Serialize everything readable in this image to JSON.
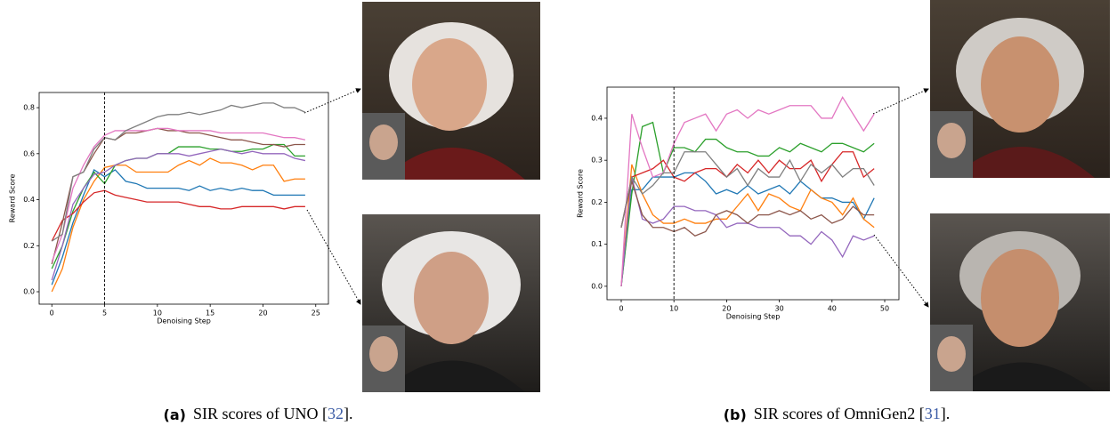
{
  "chart_data": [
    {
      "type": "line",
      "x_label": "Denoising Step",
      "y_label": "Reward Score",
      "x": [
        0,
        1,
        2,
        3,
        4,
        5,
        6,
        7,
        8,
        9,
        10,
        11,
        12,
        13,
        14,
        15,
        16,
        17,
        18,
        19,
        20,
        21,
        22,
        23,
        24
      ],
      "xlim": [
        -1.2,
        26.2
      ],
      "ylim": [
        -0.054,
        0.866
      ],
      "xticks": [
        0,
        5,
        10,
        15,
        20,
        25
      ],
      "yticks": [
        {
          "value": 0,
          "label": "0.0"
        },
        0.2,
        0.4,
        0.6,
        0.8
      ],
      "vline": 5,
      "series": [
        {
          "color": "#1f77b4",
          "values": [
            0.03,
            0.15,
            0.3,
            0.42,
            0.53,
            0.5,
            0.53,
            0.48,
            0.47,
            0.45,
            0.45,
            0.45,
            0.45,
            0.44,
            0.46,
            0.44,
            0.45,
            0.44,
            0.45,
            0.44,
            0.44,
            0.42,
            0.42,
            0.42,
            0.42
          ]
        },
        {
          "color": "#ff7f0e",
          "values": [
            0.0,
            0.1,
            0.28,
            0.4,
            0.48,
            0.54,
            0.55,
            0.55,
            0.52,
            0.52,
            0.52,
            0.52,
            0.55,
            0.57,
            0.55,
            0.58,
            0.56,
            0.56,
            0.55,
            0.53,
            0.55,
            0.55,
            0.48,
            0.49,
            0.49
          ]
        },
        {
          "color": "#2ca02c",
          "values": [
            0.1,
            0.2,
            0.35,
            0.45,
            0.52,
            0.47,
            0.55,
            0.57,
            0.58,
            0.58,
            0.6,
            0.6,
            0.63,
            0.63,
            0.63,
            0.62,
            0.62,
            0.61,
            0.61,
            0.62,
            0.62,
            0.64,
            0.64,
            0.59,
            0.59
          ]
        },
        {
          "color": "#d62728",
          "values": [
            0.22,
            0.31,
            0.34,
            0.39,
            0.43,
            0.44,
            0.42,
            0.41,
            0.4,
            0.39,
            0.39,
            0.39,
            0.39,
            0.38,
            0.37,
            0.37,
            0.36,
            0.36,
            0.37,
            0.37,
            0.37,
            0.37,
            0.36,
            0.37,
            0.37
          ]
        },
        {
          "color": "#9467bd",
          "values": [
            0.05,
            0.2,
            0.38,
            0.45,
            0.51,
            0.52,
            0.55,
            0.57,
            0.58,
            0.58,
            0.6,
            0.6,
            0.6,
            0.59,
            0.6,
            0.61,
            0.62,
            0.61,
            0.6,
            0.61,
            0.6,
            0.6,
            0.6,
            0.58,
            0.57
          ]
        },
        {
          "color": "#8c564b",
          "values": [
            0.12,
            0.3,
            0.5,
            0.52,
            0.6,
            0.67,
            0.66,
            0.69,
            0.69,
            0.7,
            0.71,
            0.7,
            0.7,
            0.69,
            0.69,
            0.68,
            0.67,
            0.66,
            0.66,
            0.65,
            0.64,
            0.64,
            0.63,
            0.64,
            0.64
          ]
        },
        {
          "color": "#e377c2",
          "values": [
            0.13,
            0.25,
            0.45,
            0.55,
            0.63,
            0.68,
            0.7,
            0.7,
            0.7,
            0.7,
            0.71,
            0.71,
            0.7,
            0.7,
            0.7,
            0.7,
            0.69,
            0.69,
            0.69,
            0.69,
            0.69,
            0.68,
            0.67,
            0.67,
            0.66
          ]
        },
        {
          "color": "#7f7f7f",
          "values": [
            0.22,
            0.25,
            0.5,
            0.52,
            0.62,
            0.67,
            0.66,
            0.7,
            0.72,
            0.74,
            0.76,
            0.77,
            0.77,
            0.78,
            0.77,
            0.78,
            0.79,
            0.81,
            0.8,
            0.81,
            0.82,
            0.82,
            0.8,
            0.8,
            0.78
          ]
        }
      ],
      "caption_label": "(a)",
      "caption_text": "SIR scores of UNO [",
      "caption_ref": "32",
      "caption_end": "]."
    },
    {
      "type": "line",
      "x_label": "Denoising Step",
      "y_label": "Reward Score",
      "x": [
        0,
        2,
        4,
        6,
        8,
        10,
        12,
        14,
        16,
        18,
        20,
        22,
        24,
        26,
        28,
        30,
        32,
        34,
        36,
        38,
        40,
        42,
        44,
        46,
        48
      ],
      "xlim": [
        -2.7,
        52.7
      ],
      "ylim": [
        -0.032,
        0.474
      ],
      "xticks": [
        0,
        10,
        20,
        30,
        40,
        50
      ],
      "yticks": [
        {
          "value": 0,
          "label": "0.0"
        },
        0.1,
        0.2,
        0.3,
        0.4
      ],
      "vline": 10,
      "series": [
        {
          "color": "#1f77b4",
          "values": [
            0.0,
            0.23,
            0.23,
            0.26,
            0.26,
            0.26,
            0.27,
            0.27,
            0.25,
            0.22,
            0.23,
            0.22,
            0.24,
            0.22,
            0.23,
            0.24,
            0.22,
            0.25,
            0.23,
            0.21,
            0.21,
            0.2,
            0.2,
            0.16,
            0.21
          ]
        },
        {
          "color": "#ff7f0e",
          "values": [
            0.0,
            0.29,
            0.22,
            0.17,
            0.15,
            0.15,
            0.16,
            0.15,
            0.15,
            0.16,
            0.16,
            0.19,
            0.22,
            0.18,
            0.22,
            0.21,
            0.19,
            0.18,
            0.23,
            0.21,
            0.2,
            0.17,
            0.21,
            0.16,
            0.14
          ]
        },
        {
          "color": "#2ca02c",
          "values": [
            0.0,
            0.22,
            0.38,
            0.39,
            0.27,
            0.33,
            0.33,
            0.32,
            0.35,
            0.35,
            0.33,
            0.32,
            0.32,
            0.31,
            0.31,
            0.33,
            0.32,
            0.34,
            0.33,
            0.32,
            0.34,
            0.34,
            0.33,
            0.32,
            0.34
          ]
        },
        {
          "color": "#d62728",
          "values": [
            0.14,
            0.26,
            0.27,
            0.28,
            0.3,
            0.26,
            0.25,
            0.27,
            0.28,
            0.28,
            0.26,
            0.29,
            0.27,
            0.3,
            0.27,
            0.3,
            0.28,
            0.28,
            0.3,
            0.25,
            0.29,
            0.32,
            0.32,
            0.26,
            0.28
          ]
        },
        {
          "color": "#9467bd",
          "values": [
            0.0,
            0.26,
            0.16,
            0.15,
            0.16,
            0.19,
            0.19,
            0.18,
            0.18,
            0.17,
            0.14,
            0.15,
            0.15,
            0.14,
            0.14,
            0.14,
            0.12,
            0.12,
            0.1,
            0.13,
            0.11,
            0.07,
            0.12,
            0.11,
            0.12
          ]
        },
        {
          "color": "#8c564b",
          "values": [
            0.14,
            0.25,
            0.17,
            0.14,
            0.14,
            0.13,
            0.14,
            0.12,
            0.13,
            0.17,
            0.18,
            0.17,
            0.15,
            0.17,
            0.17,
            0.18,
            0.17,
            0.18,
            0.16,
            0.17,
            0.15,
            0.16,
            0.19,
            0.17,
            0.17
          ]
        },
        {
          "color": "#e377c2",
          "values": [
            0.0,
            0.41,
            0.33,
            0.26,
            0.27,
            0.34,
            0.39,
            0.4,
            0.41,
            0.37,
            0.41,
            0.42,
            0.4,
            0.42,
            0.41,
            0.42,
            0.43,
            0.43,
            0.43,
            0.4,
            0.4,
            0.45,
            0.41,
            0.37,
            0.41
          ]
        },
        {
          "color": "#7f7f7f",
          "values": [
            0.14,
            0.26,
            0.22,
            0.24,
            0.27,
            0.27,
            0.32,
            0.32,
            0.32,
            0.29,
            0.26,
            0.28,
            0.24,
            0.28,
            0.26,
            0.26,
            0.3,
            0.25,
            0.29,
            0.27,
            0.29,
            0.26,
            0.28,
            0.28,
            0.24
          ]
        }
      ],
      "caption_label": "(b)",
      "caption_text": "SIR scores of OmniGen2 [",
      "caption_ref": "31",
      "caption_end": "]."
    }
  ]
}
